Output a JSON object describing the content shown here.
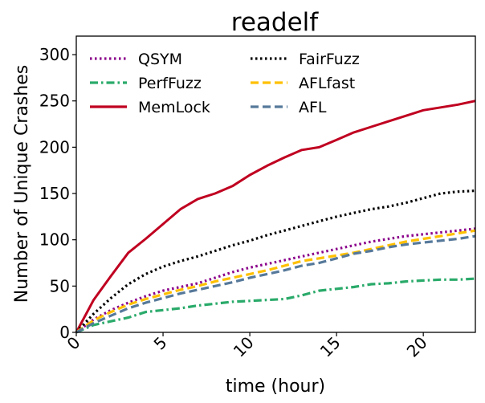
{
  "chart_data": {
    "type": "line",
    "title": "readelf",
    "xlabel": "time (hour)",
    "ylabel": "Number of Unique Crashes",
    "xlim": [
      0,
      23
    ],
    "ylim": [
      0,
      320
    ],
    "xticks": [
      0,
      5,
      10,
      15,
      20
    ],
    "yticks": [
      0,
      50,
      100,
      150,
      200,
      250,
      300
    ],
    "grid": false,
    "legend_position": "top-left",
    "series": [
      {
        "name": "QSYM",
        "color": "#8b008b",
        "dash": "dotted",
        "x": [
          0,
          1,
          2,
          3,
          4,
          5,
          6,
          7,
          8,
          9,
          10,
          11,
          12,
          13,
          14,
          15,
          16,
          17,
          18,
          19,
          20,
          21,
          22,
          23
        ],
        "y": [
          0,
          14,
          24,
          32,
          39,
          45,
          49,
          53,
          59,
          65,
          70,
          74,
          78,
          82,
          86,
          90,
          94,
          98,
          101,
          104,
          106,
          108,
          110,
          112
        ]
      },
      {
        "name": "PerfFuzz",
        "color": "#2aaa6a",
        "dash": "dashdot",
        "x": [
          0,
          1,
          2,
          3,
          4,
          5,
          6,
          7,
          8,
          9,
          10,
          11,
          12,
          13,
          14,
          15,
          16,
          17,
          18,
          19,
          20,
          21,
          22,
          23
        ],
        "y": [
          0,
          8,
          12,
          16,
          22,
          24,
          26,
          29,
          31,
          33,
          34,
          35,
          36,
          40,
          45,
          47,
          49,
          52,
          53,
          55,
          56,
          57,
          57,
          58
        ]
      },
      {
        "name": "MemLock",
        "color": "#c00020",
        "dash": "solid",
        "x": [
          0,
          1,
          2,
          3,
          4,
          5,
          6,
          7,
          8,
          9,
          10,
          11,
          12,
          13,
          14,
          15,
          16,
          17,
          18,
          19,
          20,
          21,
          22,
          23
        ],
        "y": [
          0,
          35,
          61,
          86,
          101,
          117,
          133,
          144,
          150,
          158,
          170,
          180,
          189,
          197,
          200,
          208,
          216,
          222,
          228,
          234,
          240,
          243,
          246,
          250
        ]
      },
      {
        "name": "FairFuzz",
        "color": "#000000",
        "dash": "dotted",
        "x": [
          0,
          1,
          2,
          3,
          4,
          5,
          6,
          7,
          8,
          9,
          10,
          11,
          12,
          13,
          14,
          15,
          16,
          17,
          18,
          19,
          20,
          21,
          22,
          23
        ],
        "y": [
          0,
          20,
          37,
          52,
          63,
          71,
          77,
          82,
          88,
          94,
          99,
          105,
          110,
          115,
          120,
          125,
          129,
          133,
          136,
          140,
          145,
          150,
          152,
          153
        ]
      },
      {
        "name": "AFLfast",
        "color": "#ffc000",
        "dash": "dashed",
        "x": [
          0,
          1,
          2,
          3,
          4,
          5,
          6,
          7,
          8,
          9,
          10,
          11,
          12,
          13,
          14,
          15,
          16,
          17,
          18,
          19,
          20,
          21,
          22,
          23
        ],
        "y": [
          0,
          13,
          22,
          30,
          36,
          41,
          46,
          50,
          55,
          59,
          63,
          67,
          72,
          77,
          80,
          83,
          86,
          90,
          94,
          98,
          101,
          104,
          107,
          110
        ]
      },
      {
        "name": "AFL",
        "color": "#56799a",
        "dash": "dashed",
        "x": [
          0,
          1,
          2,
          3,
          4,
          5,
          6,
          7,
          8,
          9,
          10,
          11,
          12,
          13,
          14,
          15,
          16,
          17,
          18,
          19,
          20,
          21,
          22,
          23
        ],
        "y": [
          0,
          10,
          18,
          26,
          32,
          37,
          42,
          46,
          50,
          54,
          59,
          63,
          67,
          72,
          75,
          80,
          85,
          88,
          92,
          95,
          97,
          99,
          101,
          104
        ]
      }
    ]
  }
}
